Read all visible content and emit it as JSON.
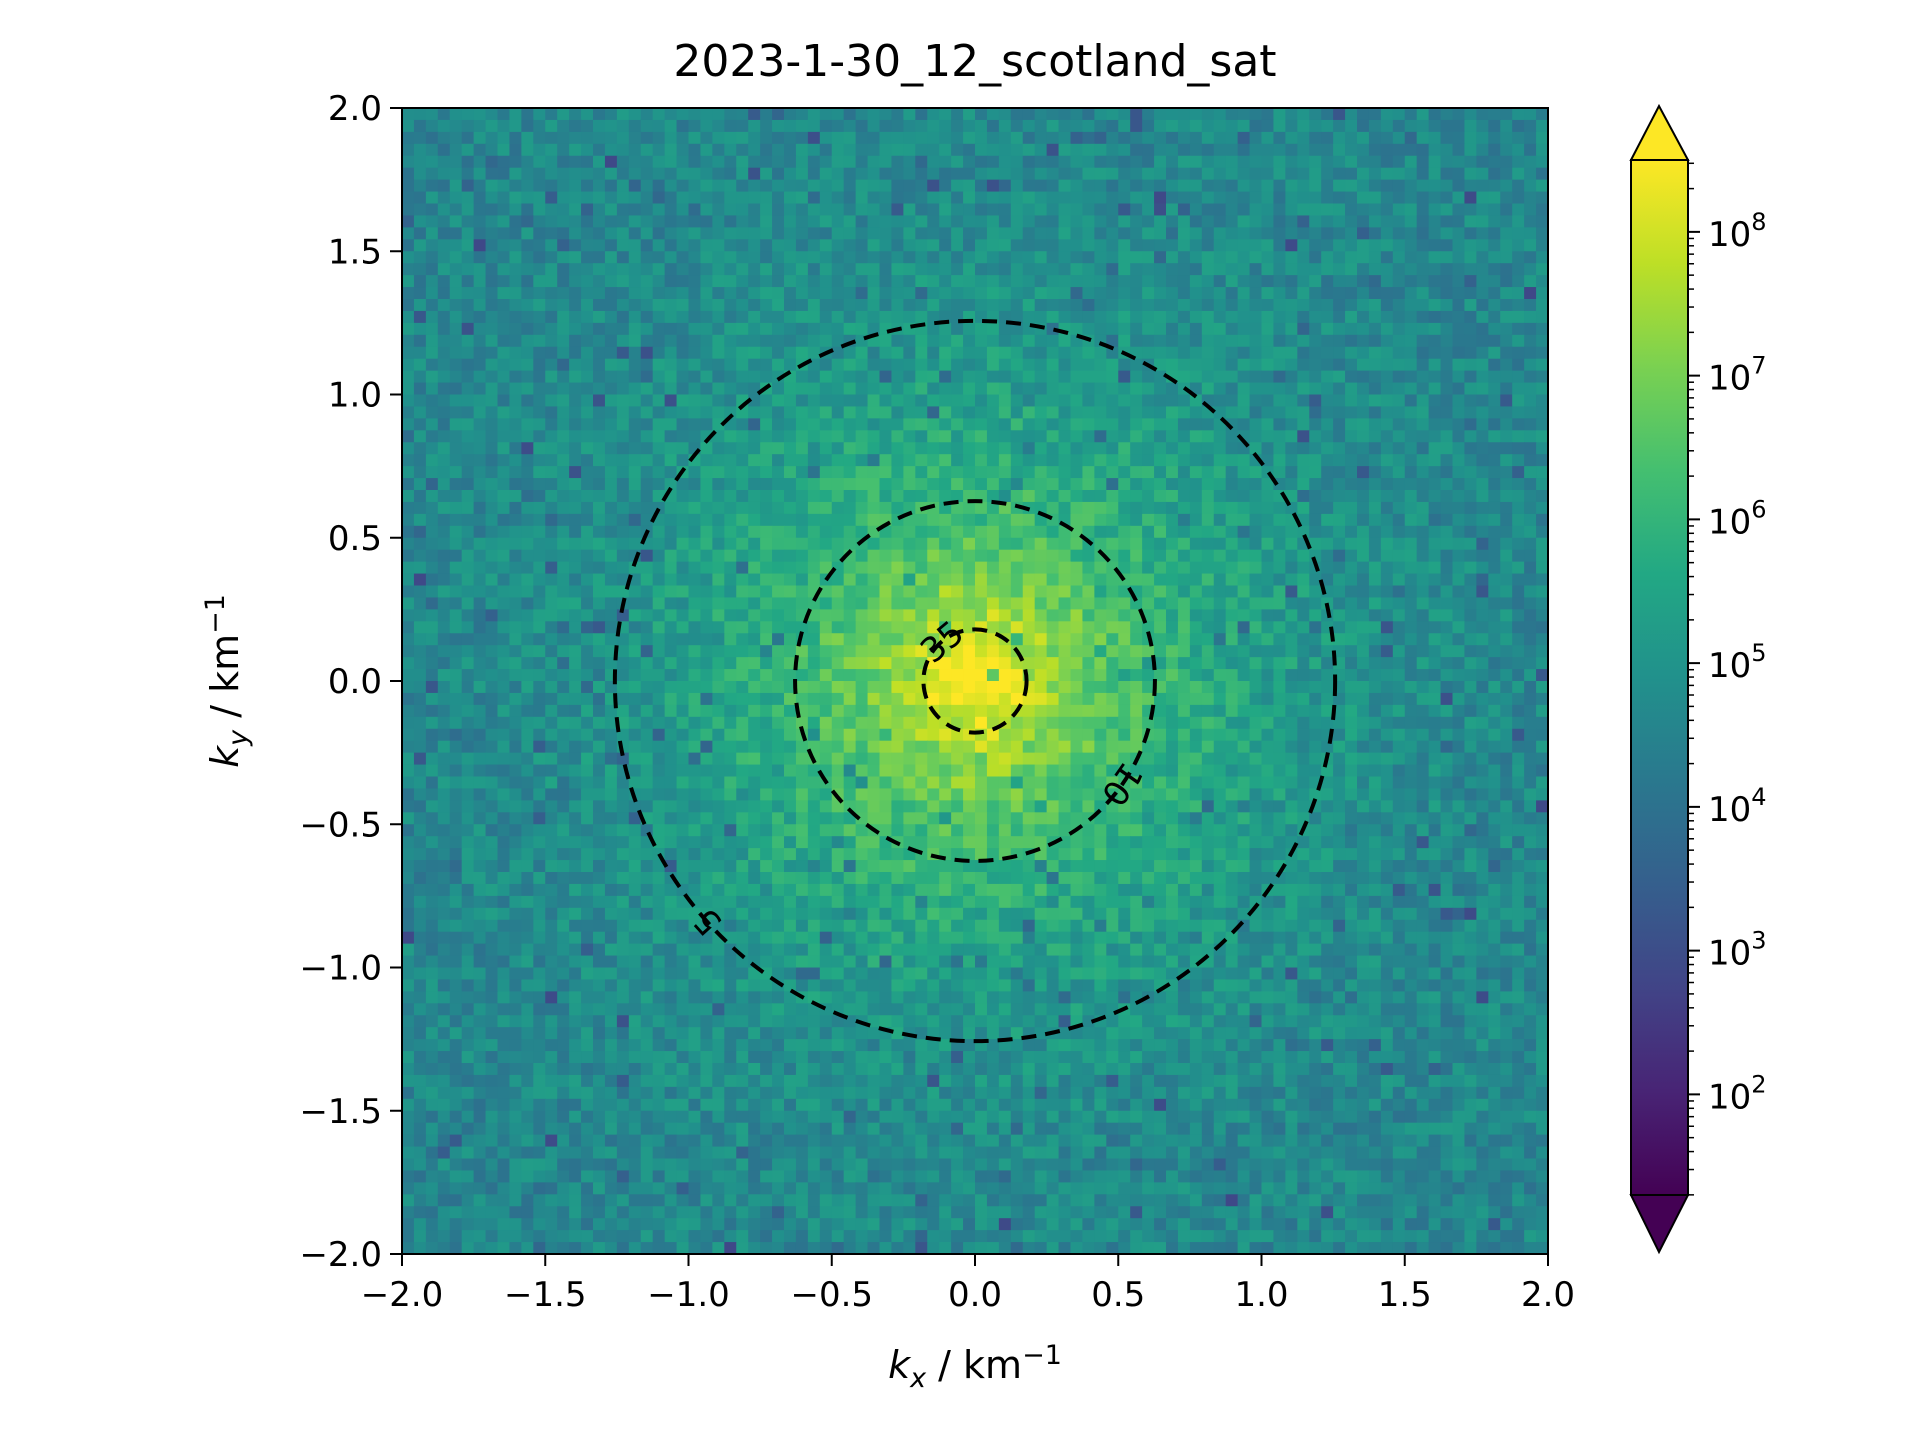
{
  "chart_data": {
    "type": "heatmap",
    "title": "2023-1-30_12_scotland_sat",
    "xlabel": {
      "symbol": "k",
      "sub": "x",
      "unit": " / km",
      "exp": "−1"
    },
    "ylabel": {
      "symbol": "k",
      "sub": "y",
      "unit": " / km",
      "exp": "−1"
    },
    "xlim": [
      -2.0,
      2.0
    ],
    "ylim": [
      -2.0,
      2.0
    ],
    "x_ticks": [
      -2.0,
      -1.5,
      -1.0,
      -0.5,
      0.0,
      0.5,
      1.0,
      1.5,
      2.0
    ],
    "y_ticks": [
      -2.0,
      -1.5,
      -1.0,
      -0.5,
      0.0,
      0.5,
      1.0,
      1.5,
      2.0
    ],
    "x_tick_labels": [
      "−2.0",
      "−1.5",
      "−1.0",
      "−0.5",
      "0.0",
      "0.5",
      "1.0",
      "1.5",
      "2.0"
    ],
    "y_tick_labels": [
      "−2.0",
      "−1.5",
      "−1.0",
      "−0.5",
      "0.0",
      "0.5",
      "1.0",
      "1.5",
      "2.0"
    ],
    "grid": false,
    "colormap": "viridis",
    "colorbar": {
      "scale": "log",
      "range_exponents": [
        1.3,
        8.5
      ],
      "extend": "both",
      "ticks": [
        {
          "base": "10",
          "exp": "2",
          "value": 100
        },
        {
          "base": "10",
          "exp": "3",
          "value": 1000
        },
        {
          "base": "10",
          "exp": "4",
          "value": 10000
        },
        {
          "base": "10",
          "exp": "5",
          "value": 100000
        },
        {
          "base": "10",
          "exp": "6",
          "value": 1000000
        },
        {
          "base": "10",
          "exp": "7",
          "value": 10000000
        },
        {
          "base": "10",
          "exp": "8",
          "value": 100000000
        }
      ]
    },
    "field_description": {
      "peak_log10_at_origin": 8.1,
      "background_log10": 4.6
    },
    "contours": [
      {
        "label": "5",
        "radius": 1.257,
        "style": "dashed",
        "color": "#000000"
      },
      {
        "label": "10",
        "radius": 0.628,
        "style": "dashed",
        "color": "#000000"
      },
      {
        "label": "35",
        "radius": 0.18,
        "style": "dashed",
        "color": "#000000"
      }
    ]
  }
}
